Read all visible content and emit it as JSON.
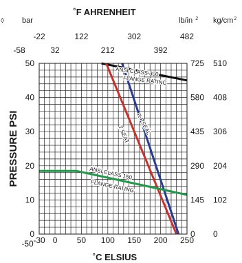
{
  "chart_data": {
    "type": "line",
    "title": "˚F AHRENHEIT",
    "xlabel": "˚C ELSIUS",
    "ylabel": "PRESSURE PSI",
    "left_unit": "bar",
    "right_units": [
      {
        "label": "lb/in",
        "sup": "2"
      },
      {
        "label": "kg/cm",
        "sup": "2"
      }
    ],
    "corner_glyph": "◊",
    "xlim": [
      -30,
      250
    ],
    "ylim": [
      0,
      50
    ],
    "grid": true,
    "x_ticks": [
      -30,
      0,
      50,
      100,
      150,
      200,
      250
    ],
    "x_tick_labels": [
      "-30",
      "0",
      "50",
      "100",
      "150",
      "200",
      "250"
    ],
    "x_left_label": "-50",
    "y_ticks": [
      0,
      10,
      20,
      30,
      40,
      50
    ],
    "y_tick_labels": [
      "0",
      "10",
      "20",
      "30",
      "40",
      "50"
    ],
    "fahrenheit_row1": [
      {
        "label": "-22",
        "c": -30
      },
      {
        "label": "122",
        "c": 50
      },
      {
        "label": "302",
        "c": 150
      },
      {
        "label": "482",
        "c": 250
      }
    ],
    "fahrenheit_row2": [
      {
        "label": "-58",
        "c": -50
      },
      {
        "label": "32",
        "c": 0
      },
      {
        "label": "212",
        "c": 100
      },
      {
        "label": "392",
        "c": 200
      }
    ],
    "right_scale": [
      {
        "bar": 50,
        "lbin2": "725",
        "kgcm2": "510"
      },
      {
        "bar": 40,
        "lbin2": "580",
        "kgcm2": "408"
      },
      {
        "bar": 30,
        "lbin2": "435",
        "kgcm2": "306"
      },
      {
        "bar": 20,
        "lbin2": "290",
        "kgcm2": "204"
      },
      {
        "bar": 10,
        "lbin2": "145",
        "kgcm2": "102"
      },
      {
        "bar": 0,
        "lbin2": "0",
        "kgcm2": "0"
      }
    ],
    "series": [
      {
        "name": "ANSI CLASS 300 FLANGE RATING",
        "color": "#111111",
        "points": [
          [
            88,
            50
          ],
          [
            250,
            45
          ]
        ]
      },
      {
        "name": "R.PSEAL",
        "color": "#283c96",
        "points": [
          [
            127,
            50
          ],
          [
            234,
            0
          ]
        ]
      },
      {
        "name": "T SEAT",
        "color": "#c8322d",
        "points": [
          [
            97,
            50
          ],
          [
            230,
            0
          ]
        ]
      },
      {
        "name": "ANSI CLASS 150 FLANGE RATING",
        "color": "#1f9a48",
        "points": [
          [
            -30,
            18.5
          ],
          [
            40,
            18.5
          ],
          [
            250,
            11.5
          ]
        ]
      }
    ],
    "annotations": [
      {
        "id": "class300",
        "text": "ANSI CLASS 300",
        "x": 155,
        "y": 47,
        "angle": 7,
        "color": "#111111"
      },
      {
        "id": "rating300",
        "text": "FLANGE RATING",
        "x": 170,
        "y": 44.5,
        "angle": 7,
        "color": "#111111"
      },
      {
        "id": "rseal",
        "text": "R.PSEAL",
        "x": 165,
        "y": 32,
        "angle": 62,
        "color": "#111111"
      },
      {
        "id": "tseat",
        "text": "T SEAT",
        "x": 127,
        "y": 29,
        "angle": 66,
        "color": "#111111"
      },
      {
        "id": "class150",
        "text": "ANSI CLASS 150",
        "x": 105,
        "y": 17.3,
        "angle": 12,
        "color": "#111111"
      },
      {
        "id": "rating150",
        "text": "FLANGE RATING",
        "x": 108,
        "y": 13.5,
        "angle": 12,
        "color": "#111111"
      }
    ]
  }
}
